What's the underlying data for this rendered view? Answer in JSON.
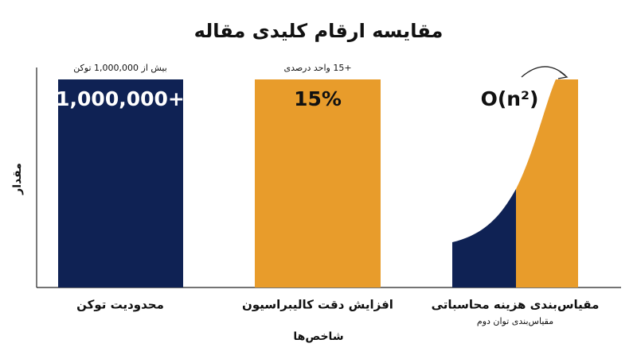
{
  "header": {
    "title": "مقایسه ارقام کلیدی مقاله"
  },
  "axes": {
    "y_label": "مقدار",
    "x_label": "شاخص‌ها"
  },
  "panels": [
    {
      "note": "بیش از 1,000,000 توکن",
      "big": "1,000,000+",
      "label": "محدودیت توکن"
    },
    {
      "note": "+15 واحد درصدی",
      "big": "15%",
      "label": "افزایش دقت کالیبراسیون"
    },
    {
      "big": "O(n²)",
      "label": "مقیاس‌بندی هزینه محاسباتی",
      "sublabel": "مقیاس‌بندی توان دوم"
    }
  ]
}
